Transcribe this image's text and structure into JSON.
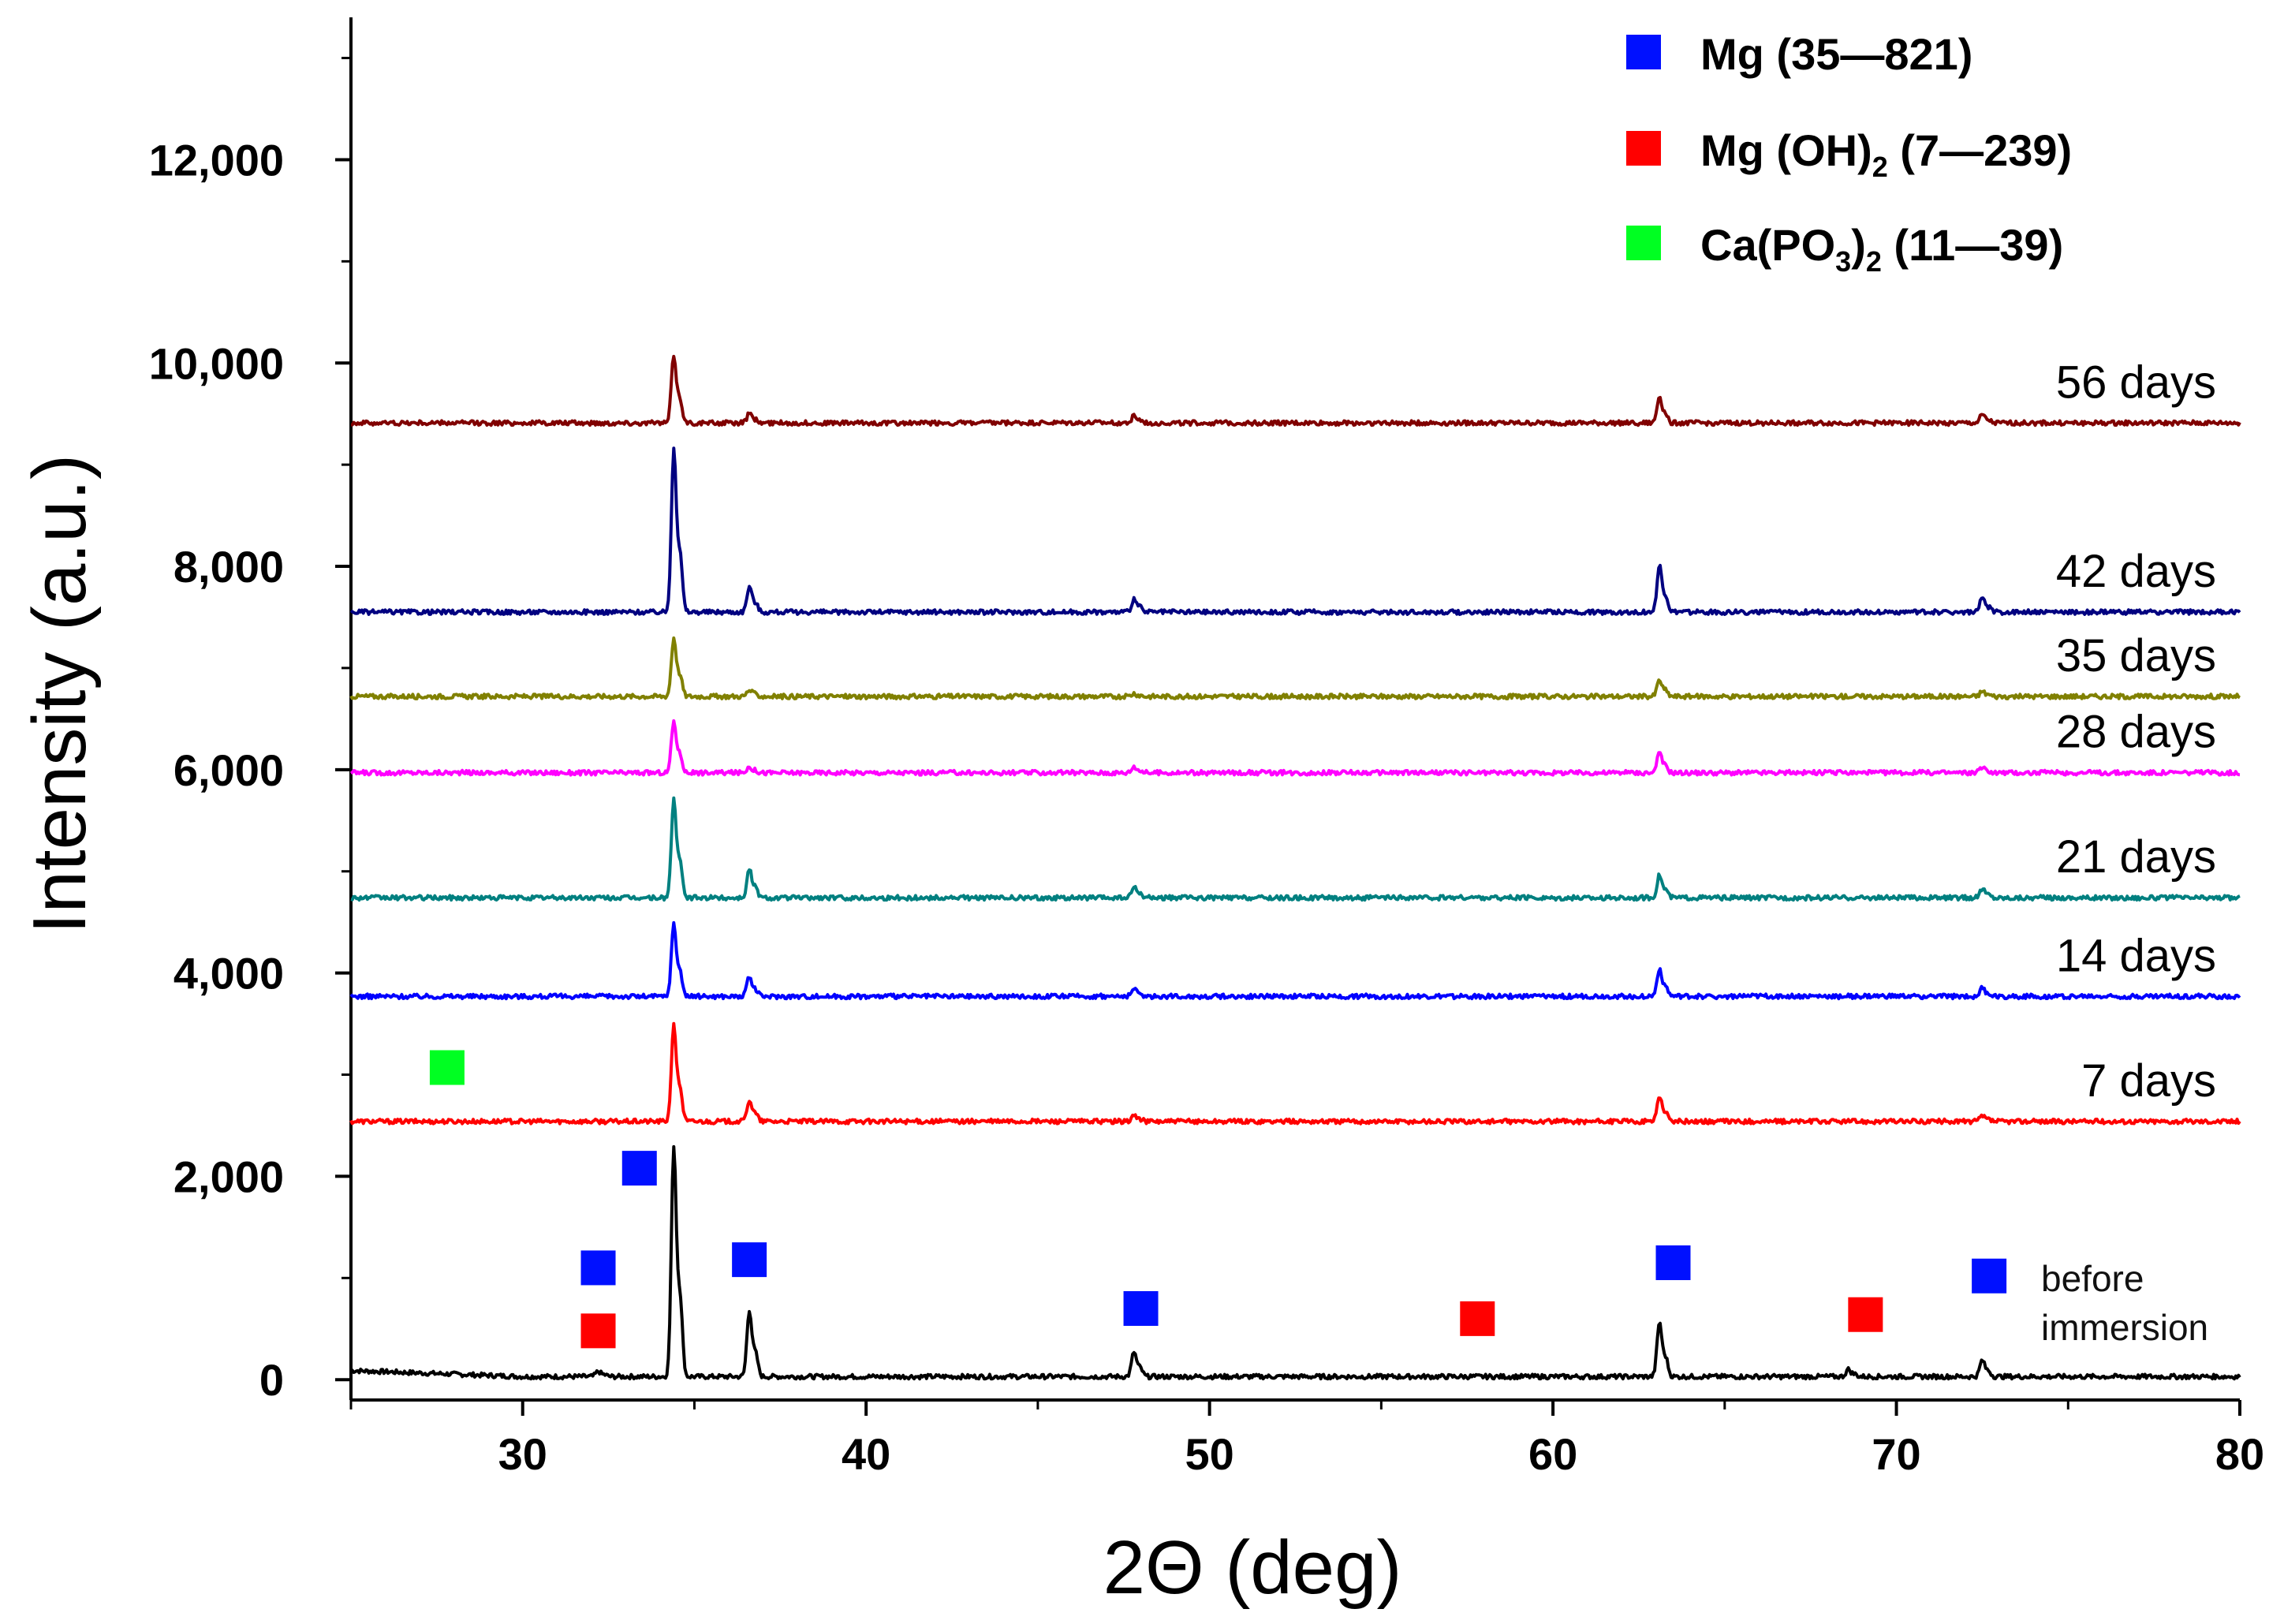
{
  "colors": {
    "mg": "#0010ff",
    "mgoh": "#ff0000",
    "capo": "#00ff22",
    "axis": "#000000"
  },
  "chart_data": {
    "type": "line",
    "title": "",
    "xlabel": "2Θ (deg)",
    "ylabel": "Intensity (a.u.)",
    "xlim": [
      25,
      80
    ],
    "ylim": [
      -200,
      13400
    ],
    "x_ticks": [
      30,
      40,
      50,
      60,
      70,
      80
    ],
    "x_tick_labels": [
      "30",
      "40",
      "50",
      "60",
      "70",
      "80"
    ],
    "y_ticks": [
      0,
      2000,
      4000,
      6000,
      8000,
      10000,
      12000
    ],
    "y_tick_labels": [
      "0",
      "2,000",
      "4,000",
      "6,000",
      "8,000",
      "10,000",
      "12,000"
    ],
    "peak_positions": [
      32.2,
      34.4,
      36.6,
      47.8,
      63.1,
      68.6,
      72.5
    ],
    "series": [
      {
        "name": "before immersion",
        "label": [
          "before",
          "immersion"
        ],
        "color": "#000000",
        "baseline": 30,
        "peaks": [
          [
            32.2,
            80
          ],
          [
            34.4,
            2280
          ],
          [
            36.6,
            680
          ],
          [
            47.8,
            270
          ],
          [
            63.1,
            560
          ],
          [
            68.6,
            100
          ],
          [
            72.5,
            190
          ]
        ]
      },
      {
        "name": "7 days",
        "label": [
          "7 days"
        ],
        "color": "#ff0000",
        "baseline": 2540,
        "peaks": [
          [
            34.4,
            3470
          ],
          [
            36.6,
            2750
          ],
          [
            47.8,
            2600
          ],
          [
            63.1,
            2790
          ],
          [
            72.5,
            2590
          ]
        ]
      },
      {
        "name": "14 days",
        "label": [
          "14 days"
        ],
        "color": "#0000ff",
        "baseline": 3770,
        "peaks": [
          [
            34.4,
            4470
          ],
          [
            36.6,
            3960
          ],
          [
            47.8,
            3840
          ],
          [
            63.1,
            4040
          ],
          [
            72.5,
            3850
          ]
        ]
      },
      {
        "name": "21 days",
        "label": [
          "21 days"
        ],
        "color": "#008080",
        "baseline": 4740,
        "peaks": [
          [
            34.4,
            5700
          ],
          [
            36.6,
            5020
          ],
          [
            47.8,
            4840
          ],
          [
            63.1,
            4960
          ],
          [
            72.5,
            4830
          ]
        ]
      },
      {
        "name": "28 days",
        "label": [
          "28 days"
        ],
        "color": "#ff00ff",
        "baseline": 5970,
        "peaks": [
          [
            34.4,
            6470
          ],
          [
            36.6,
            6030
          ],
          [
            47.8,
            6030
          ],
          [
            63.1,
            6160
          ],
          [
            72.5,
            6020
          ]
        ]
      },
      {
        "name": "35 days",
        "label": [
          "35 days"
        ],
        "color": "#808000",
        "baseline": 6720,
        "peaks": [
          [
            34.4,
            7290
          ],
          [
            36.6,
            6780
          ],
          [
            47.8,
            6750
          ],
          [
            63.1,
            6880
          ],
          [
            72.5,
            6770
          ]
        ]
      },
      {
        "name": "42 days",
        "label": [
          "42 days"
        ],
        "color": "#000080",
        "baseline": 7550,
        "peaks": [
          [
            34.4,
            9150
          ],
          [
            36.6,
            7800
          ],
          [
            47.8,
            7680
          ],
          [
            63.1,
            8000
          ],
          [
            72.5,
            7690
          ]
        ]
      },
      {
        "name": "56 days",
        "label": [
          "56 days"
        ],
        "color": "#800000",
        "baseline": 9410,
        "peaks": [
          [
            34.4,
            10070
          ],
          [
            36.6,
            9500
          ],
          [
            47.8,
            9480
          ],
          [
            63.1,
            9670
          ],
          [
            72.5,
            9490
          ]
        ]
      }
    ],
    "markers": [
      {
        "phase": "Mg",
        "x": 32.2,
        "y": 1100,
        "color": "#0010ff"
      },
      {
        "phase": "Mg(OH)2",
        "x": 32.2,
        "y": 480,
        "color": "#ff0000"
      },
      {
        "phase": "Mg",
        "x": 33.4,
        "y": 2080,
        "color": "#0010ff"
      },
      {
        "phase": "Mg",
        "x": 36.6,
        "y": 1180,
        "color": "#0010ff"
      },
      {
        "phase": "Mg",
        "x": 48.0,
        "y": 700,
        "color": "#0010ff"
      },
      {
        "phase": "Mg(OH)2",
        "x": 57.8,
        "y": 600,
        "color": "#ff0000"
      },
      {
        "phase": "Mg",
        "x": 63.5,
        "y": 1150,
        "color": "#0010ff"
      },
      {
        "phase": "Mg(OH)2",
        "x": 69.1,
        "y": 640,
        "color": "#ff0000"
      },
      {
        "phase": "Mg",
        "x": 72.7,
        "y": 1020,
        "color": "#0010ff"
      },
      {
        "phase": "Ca(PO3)2",
        "x": 27.8,
        "y": 3070,
        "color": "#00ff22"
      }
    ],
    "legend": [
      {
        "name": "Mg",
        "parts": [
          "Mg (35—821)"
        ],
        "color": "#0010ff"
      },
      {
        "name": "Mg(OH)2",
        "parts": [
          "Mg (OH)",
          "2",
          " (7—239)"
        ],
        "color": "#ff0000"
      },
      {
        "name": "Ca(PO3)2",
        "parts": [
          "Ca(PO",
          "3",
          ")",
          "2",
          " (11—39)"
        ],
        "color": "#00ff22"
      }
    ],
    "legend_position": "top-right"
  }
}
